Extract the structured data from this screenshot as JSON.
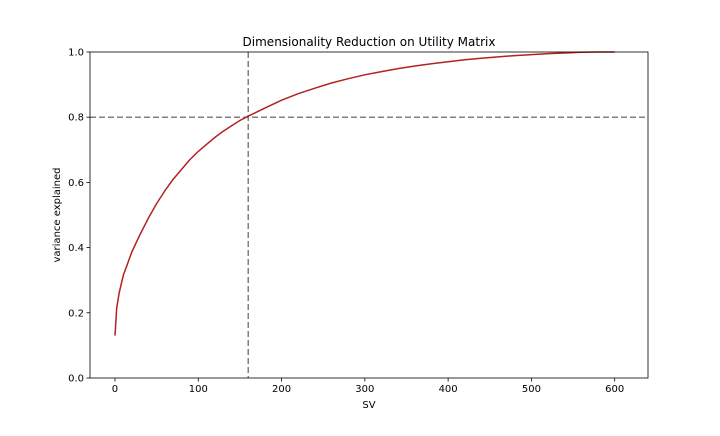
{
  "chart_data": {
    "type": "line",
    "title": "Dimensionality Reduction on Utility Matrix",
    "xlabel": "SV",
    "ylabel": "variance explained",
    "xlim": [
      -30,
      640
    ],
    "ylim": [
      0.0,
      1.0
    ],
    "xticks": [
      0,
      100,
      200,
      300,
      400,
      500,
      600
    ],
    "yticks": [
      0.0,
      0.2,
      0.4,
      0.6,
      0.8,
      1.0
    ],
    "ytick_labels": [
      "0.0",
      "0.2",
      "0.4",
      "0.6",
      "0.8",
      "1.0"
    ],
    "grid": false,
    "line_color": "#b22222",
    "reference_color": "#808080",
    "reference_lines": [
      {
        "orientation": "vertical",
        "x": 160
      },
      {
        "orientation": "horizontal",
        "y": 0.8
      }
    ],
    "series": [
      {
        "x": [
          0,
          2,
          5,
          10,
          15,
          20,
          30,
          40,
          50,
          60,
          70,
          80,
          90,
          100,
          110,
          120,
          130,
          140,
          150,
          160,
          180,
          200,
          220,
          240,
          260,
          280,
          300,
          320,
          340,
          360,
          380,
          400,
          420,
          440,
          460,
          480,
          500,
          520,
          540,
          560,
          580,
          600
        ],
        "y": [
          0.13,
          0.215,
          0.26,
          0.315,
          0.35,
          0.385,
          0.44,
          0.49,
          0.535,
          0.575,
          0.61,
          0.64,
          0.67,
          0.695,
          0.717,
          0.738,
          0.757,
          0.774,
          0.79,
          0.803,
          0.828,
          0.852,
          0.872,
          0.889,
          0.905,
          0.918,
          0.93,
          0.94,
          0.949,
          0.957,
          0.964,
          0.97,
          0.976,
          0.981,
          0.985,
          0.989,
          0.992,
          0.995,
          0.997,
          0.999,
          1.0,
          1.0
        ]
      }
    ]
  }
}
